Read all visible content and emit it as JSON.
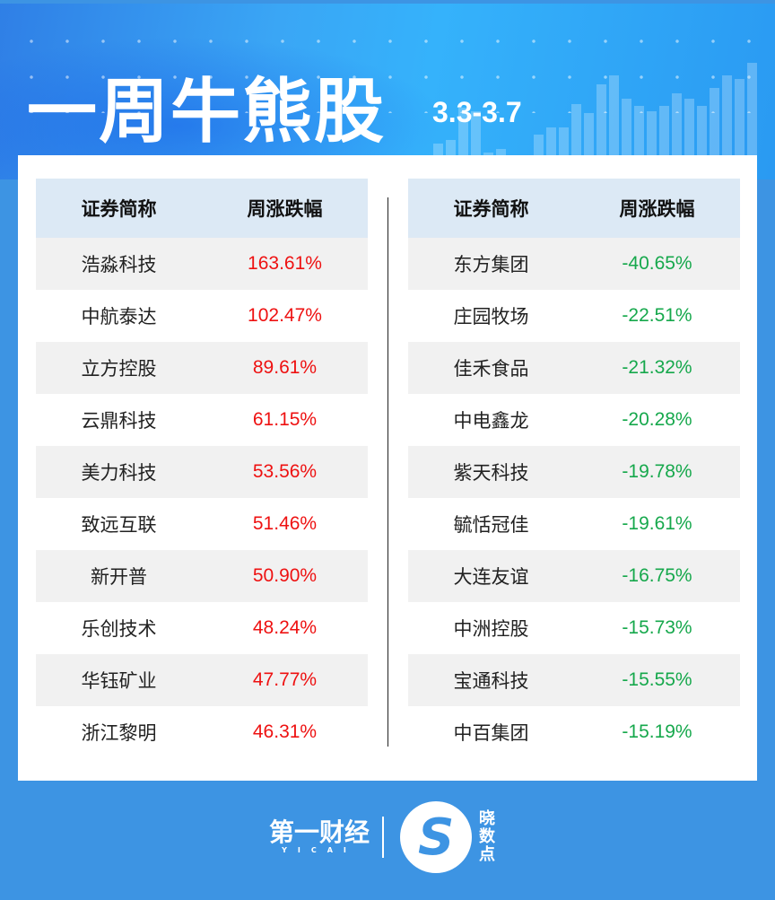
{
  "header": {
    "title": "一周牛熊股",
    "date_range": "3.3-3.7"
  },
  "colors": {
    "up": "#ee1111",
    "down": "#16a84c",
    "background": "#3d94e3",
    "header_cell": "#dce9f5"
  },
  "bull": {
    "columns": [
      "证券简称",
      "周涨跌幅"
    ],
    "rows": [
      [
        "浩淼科技",
        "163.61%"
      ],
      [
        "中航泰达",
        "102.47%"
      ],
      [
        "立方控股",
        "89.61%"
      ],
      [
        "云鼎科技",
        "61.15%"
      ],
      [
        "美力科技",
        "53.56%"
      ],
      [
        "致远互联",
        "51.46%"
      ],
      [
        "新开普",
        "50.90%"
      ],
      [
        "乐创技术",
        "48.24%"
      ],
      [
        "华钰矿业",
        "47.77%"
      ],
      [
        "浙江黎明",
        "46.31%"
      ]
    ]
  },
  "bear": {
    "columns": [
      "证券简称",
      "周涨跌幅"
    ],
    "rows": [
      [
        "东方集团",
        "-40.65%"
      ],
      [
        "庄园牧场",
        "-22.51%"
      ],
      [
        "佳禾食品",
        "-21.32%"
      ],
      [
        "中电鑫龙",
        "-20.28%"
      ],
      [
        "紫天科技",
        "-19.78%"
      ],
      [
        "毓恬冠佳",
        "-19.61%"
      ],
      [
        "大连友谊",
        "-16.75%"
      ],
      [
        "中洲控股",
        "-15.73%"
      ],
      [
        "宝通科技",
        "-15.55%"
      ],
      [
        "中百集团",
        "-15.19%"
      ]
    ]
  },
  "footer": {
    "brand": "第一财经",
    "brand_en": "YICAI",
    "sub_brand": "晓数点"
  }
}
